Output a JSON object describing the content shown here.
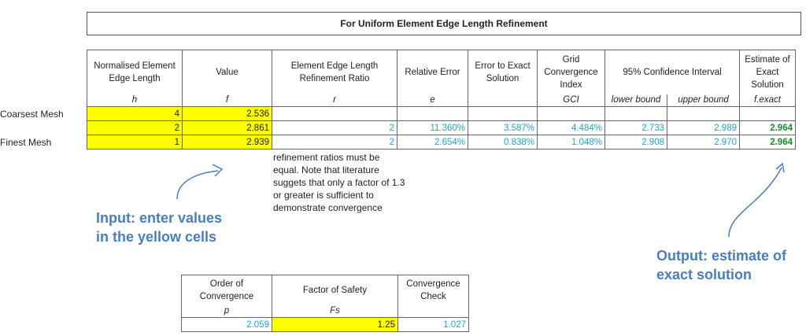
{
  "title": "For Uniform Element Edge Length Refinement",
  "main_table": {
    "headers": [
      {
        "label": "Normalised Element Edge Length",
        "symbol": "h"
      },
      {
        "label": "Value",
        "symbol": "f"
      },
      {
        "label": "Element Edge Length Refinement Ratio",
        "symbol": "r"
      },
      {
        "label": "Relative Error",
        "symbol": "e"
      },
      {
        "label": "Error to Exact Solution",
        "symbol": ""
      },
      {
        "label": "Grid Convergence Index",
        "symbol": "GCI"
      },
      {
        "label": "95% Confidence Interval",
        "symbol_lower": "lower bound",
        "symbol_upper": "upper bound"
      },
      {
        "label": "Estimate of Exact Solution",
        "symbol": "f.exact"
      }
    ],
    "rows": [
      {
        "label": "Coarsest Mesh",
        "h": "4",
        "f": "2.536",
        "r": "",
        "e": "",
        "err_exact": "",
        "gci": "",
        "lower": "",
        "upper": "",
        "f_exact": ""
      },
      {
        "label": "",
        "h": "2",
        "f": "2.861",
        "r": "2",
        "e": "11.360%",
        "err_exact": "3.587%",
        "gci": "4.484%",
        "lower": "2.733",
        "upper": "2.989",
        "f_exact": "2.964"
      },
      {
        "label": "Finest Mesh",
        "h": "1",
        "f": "2.939",
        "r": "2",
        "e": "2.654%",
        "err_exact": "0.838%",
        "gci": "1.048%",
        "lower": "2.908",
        "upper": "2.970",
        "f_exact": "2.964"
      }
    ]
  },
  "note": "refinement ratios must be equal. Note that literature suggets that only a factor of 1.3 or greater is sufficient to demonstrate convergence",
  "callout_input": [
    "Input: enter values",
    "in the yellow cells"
  ],
  "callout_output": [
    "Output: estimate of",
    "exact solution"
  ],
  "bottom_table": {
    "headers": [
      {
        "label": "Order of Convergence",
        "symbol": "p"
      },
      {
        "label": "Factor of Safety",
        "symbol": "Fs"
      },
      {
        "label": "Convergence Check",
        "symbol": ""
      }
    ],
    "values": {
      "p": "2.059",
      "fs": "1.25",
      "check": "1.027"
    }
  },
  "colors": {
    "input": "#ffff00",
    "computed": "#24a5c8",
    "estimate": "#1e8a2e",
    "callout": "#4a7ebb"
  }
}
